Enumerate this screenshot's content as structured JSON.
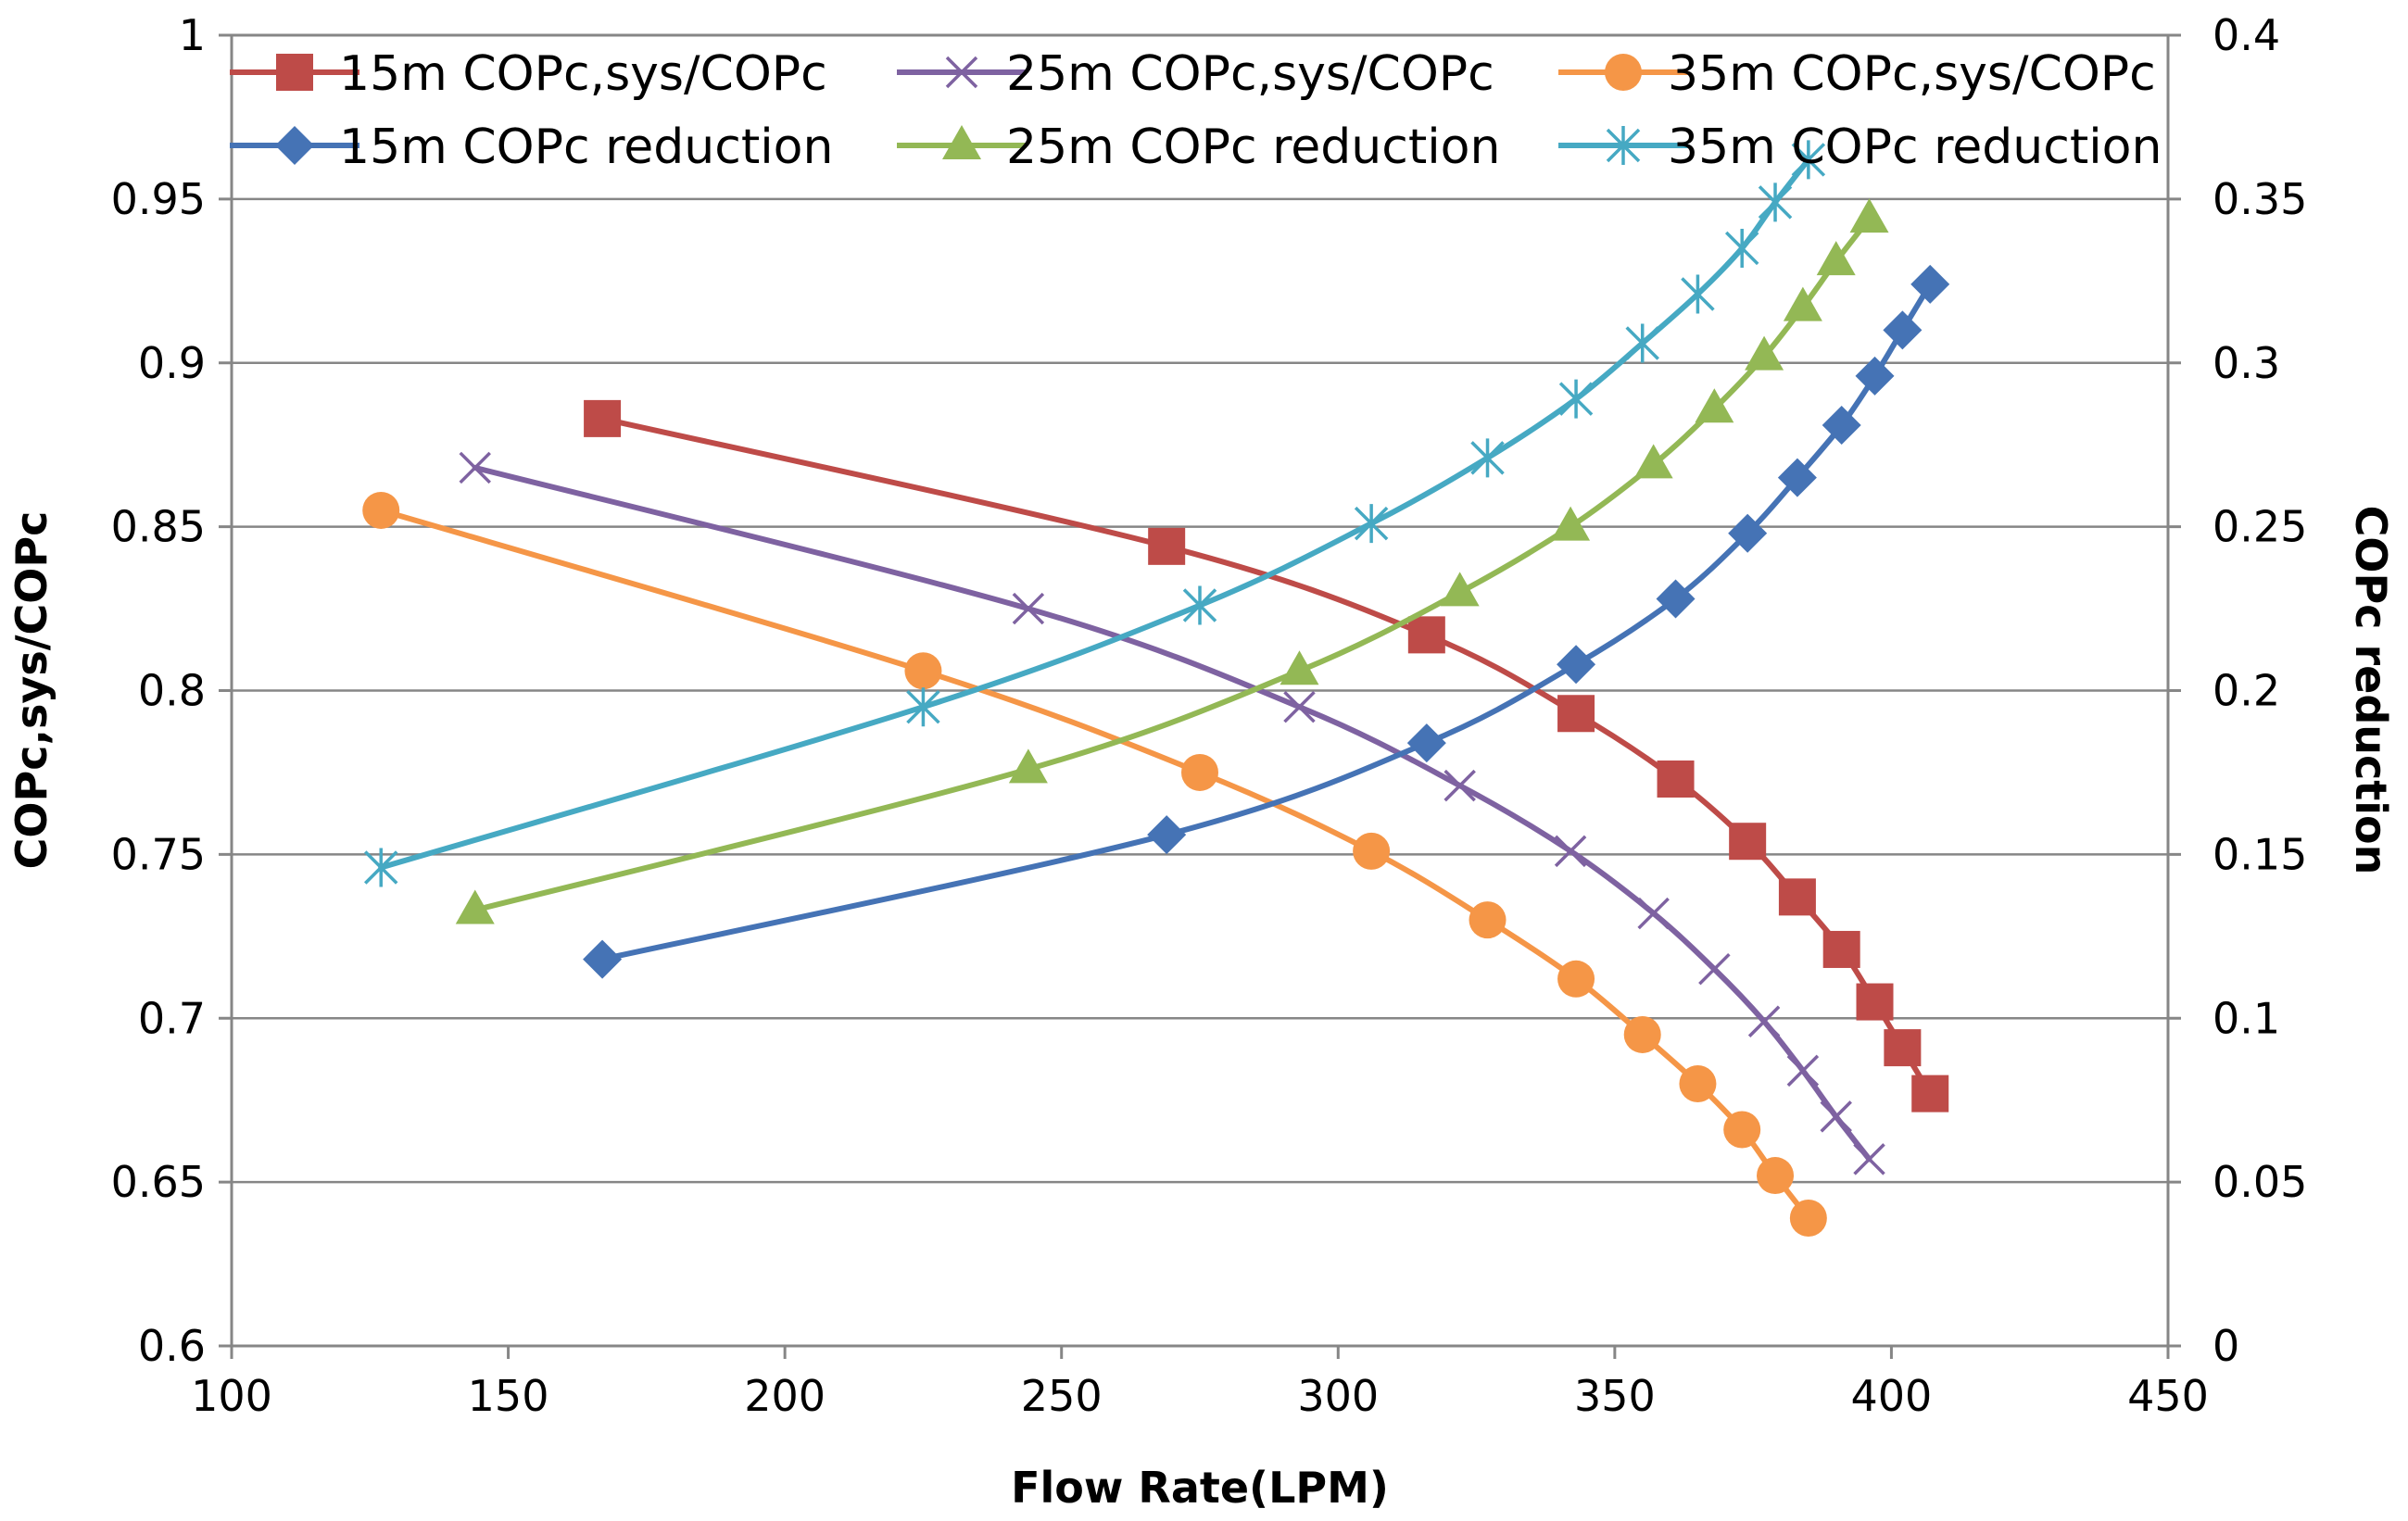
{
  "chart_data": {
    "type": "line",
    "title": "",
    "xlabel": "Flow Rate(LPM)",
    "ylabel": "COPc,sys/COPc",
    "y2label": "COPc reduction",
    "xlim": [
      100,
      450
    ],
    "ylim": [
      0.6,
      1
    ],
    "y2lim": [
      0,
      0.4
    ],
    "xticks": [
      "100",
      "150",
      "200",
      "250",
      "300",
      "350",
      "400",
      "450"
    ],
    "yticks": [
      "0.6",
      "0.65",
      "0.7",
      "0.75",
      "0.8",
      "0.85",
      "0.9",
      "0.95",
      "1"
    ],
    "y2ticks": [
      "0",
      "0.05",
      "0.1",
      "0.15",
      "0.2",
      "0.25",
      "0.3",
      "0.35",
      "0.4"
    ],
    "grid": "horizontal",
    "legend_position": "top",
    "series": [
      {
        "name": "15m COPc,sys/COPc",
        "axis": "left",
        "color": "#BE4B48",
        "marker": "square",
        "x": [
          167,
          269,
          316,
          343,
          361,
          374,
          383,
          391,
          397,
          402,
          407
        ],
        "y": [
          0.883,
          0.844,
          0.817,
          0.793,
          0.773,
          0.754,
          0.737,
          0.721,
          0.705,
          0.691,
          0.677
        ]
      },
      {
        "name": "25m COPc,sys/COPc",
        "axis": "left",
        "color": "#7E62A1",
        "marker": "x",
        "x": [
          144,
          244,
          293,
          322,
          342,
          357,
          368,
          377,
          384,
          390,
          396
        ],
        "y": [
          0.868,
          0.825,
          0.795,
          0.771,
          0.751,
          0.732,
          0.715,
          0.699,
          0.684,
          0.67,
          0.657
        ]
      },
      {
        "name": "35m COPc,sys/COPc",
        "axis": "left",
        "color": "#F59647",
        "marker": "circle",
        "x": [
          127,
          225,
          275,
          306,
          327,
          343,
          355,
          365,
          373,
          379,
          385
        ],
        "y": [
          0.855,
          0.806,
          0.775,
          0.751,
          0.73,
          0.712,
          0.695,
          0.68,
          0.666,
          0.652,
          0.639
        ]
      },
      {
        "name": "15m COPc reduction",
        "axis": "right",
        "color": "#4573B5",
        "marker": "diamond",
        "x": [
          167,
          269,
          316,
          343,
          361,
          374,
          383,
          391,
          397,
          402,
          407
        ],
        "y": [
          0.118,
          0.156,
          0.184,
          0.208,
          0.228,
          0.248,
          0.265,
          0.281,
          0.296,
          0.31,
          0.324
        ]
      },
      {
        "name": "25m COPc reduction",
        "axis": "right",
        "color": "#93B855",
        "marker": "triangle",
        "x": [
          144,
          244,
          293,
          322,
          342,
          357,
          368,
          377,
          384,
          390,
          396
        ],
        "y": [
          0.133,
          0.176,
          0.206,
          0.23,
          0.25,
          0.269,
          0.286,
          0.302,
          0.317,
          0.331,
          0.344
        ]
      },
      {
        "name": "35m COPc reduction",
        "axis": "right",
        "color": "#46A9C3",
        "marker": "asterisk",
        "x": [
          127,
          225,
          275,
          306,
          327,
          343,
          355,
          365,
          373,
          379,
          385
        ],
        "y": [
          0.146,
          0.195,
          0.226,
          0.251,
          0.271,
          0.289,
          0.306,
          0.321,
          0.335,
          0.349,
          0.362
        ]
      }
    ]
  }
}
